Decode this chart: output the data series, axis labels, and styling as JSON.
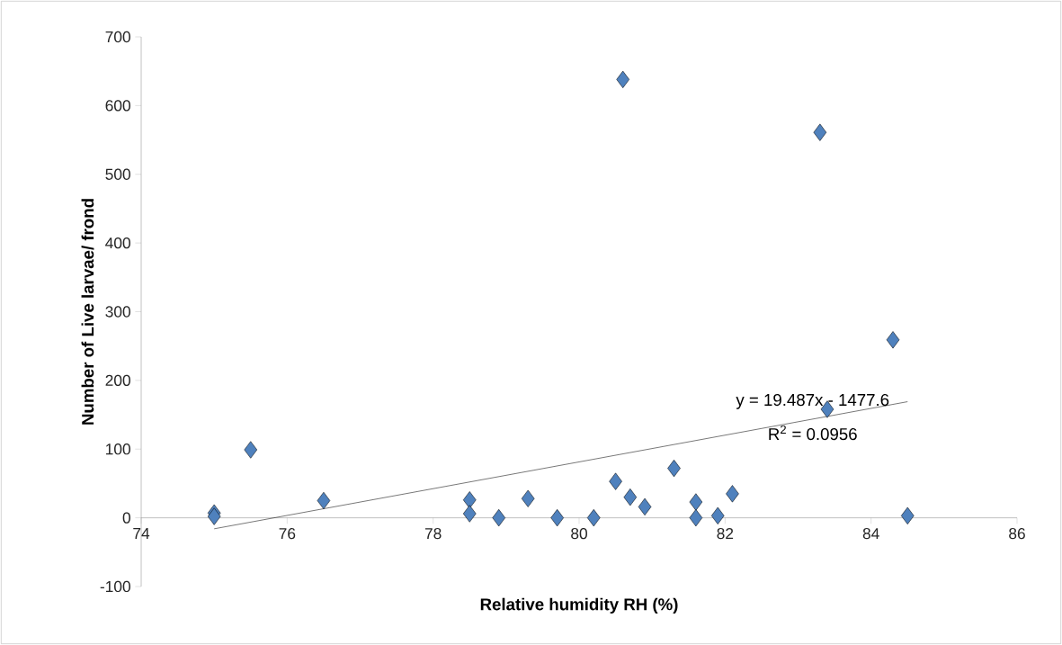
{
  "chart_data": {
    "type": "scatter",
    "xlabel": "Relative humidity RH (%)",
    "ylabel": "Number of Live larvae/ frond",
    "xlim": [
      74,
      86
    ],
    "xticks": [
      74,
      76,
      78,
      80,
      82,
      84,
      86
    ],
    "ylim": [
      -100,
      700
    ],
    "yticks": [
      -100,
      0,
      100,
      200,
      300,
      400,
      500,
      600,
      700
    ],
    "grid": false,
    "series": [
      {
        "color": "#4f81bd",
        "marker": "diamond",
        "x": [
          75.0,
          75.0,
          75.5,
          76.5,
          78.5,
          78.5,
          78.9,
          79.3,
          79.7,
          80.2,
          80.5,
          80.6,
          80.7,
          80.9,
          81.3,
          81.6,
          81.6,
          81.9,
          82.1,
          83.3,
          83.4,
          84.3,
          84.5
        ],
        "values": [
          7,
          2,
          99,
          25,
          26,
          6,
          0,
          28,
          0,
          0,
          53,
          638,
          30,
          16,
          72,
          23,
          0,
          3,
          35,
          561,
          158,
          259,
          3
        ]
      },
      {
        "type": "line",
        "color": "#000000",
        "marker": "none",
        "line_style": "solid",
        "x": [
          75.0,
          84.5
        ],
        "values": [
          -16,
          169
        ]
      }
    ],
    "annotations": [
      "y = 19.487x - 1477.6",
      "R$^{2}$ = 0.0956"
    ]
  }
}
